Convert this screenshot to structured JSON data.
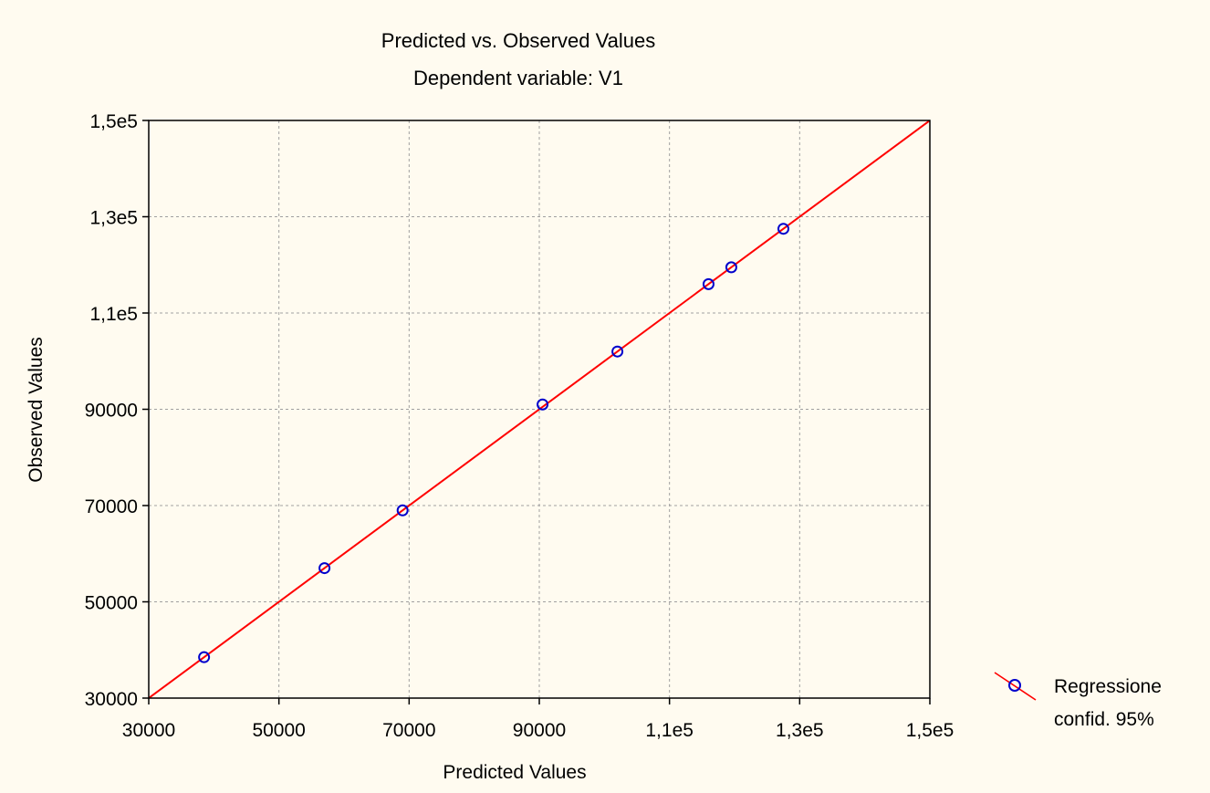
{
  "colors": {
    "background": "#FFFBF0",
    "grid": "#A0A0A0",
    "line": "#FF0000",
    "marker": "#0000CC"
  },
  "chart_data": {
    "type": "scatter",
    "title": "Predicted vs. Observed Values",
    "subtitle": "Dependent variable: V1",
    "xlabel": "Predicted Values",
    "ylabel": "Observed Values",
    "xlim": [
      30000,
      150000
    ],
    "ylim": [
      30000,
      150000
    ],
    "grid": true,
    "legend_position": "right",
    "x_ticks": [
      {
        "value": 30000,
        "label": "30000"
      },
      {
        "value": 50000,
        "label": "50000"
      },
      {
        "value": 70000,
        "label": "70000"
      },
      {
        "value": 90000,
        "label": "90000"
      },
      {
        "value": 110000,
        "label": "1,1e5"
      },
      {
        "value": 130000,
        "label": "1,3e5"
      },
      {
        "value": 150000,
        "label": "1,5e5"
      }
    ],
    "y_ticks": [
      {
        "value": 30000,
        "label": "30000"
      },
      {
        "value": 50000,
        "label": "50000"
      },
      {
        "value": 70000,
        "label": "70000"
      },
      {
        "value": 90000,
        "label": "90000"
      },
      {
        "value": 110000,
        "label": "1,1e5"
      },
      {
        "value": 130000,
        "label": "1,3e5"
      },
      {
        "value": 150000,
        "label": "1,5e5"
      }
    ],
    "legend": [
      "Regressione",
      "confid. 95%"
    ],
    "points": [
      {
        "x": 38500,
        "y": 38500
      },
      {
        "x": 57000,
        "y": 57000
      },
      {
        "x": 69000,
        "y": 69000
      },
      {
        "x": 90500,
        "y": 91000
      },
      {
        "x": 102000,
        "y": 102000
      },
      {
        "x": 116000,
        "y": 116000
      },
      {
        "x": 119500,
        "y": 119500
      },
      {
        "x": 127500,
        "y": 127500
      }
    ],
    "fit_line": {
      "x": [
        30000,
        150000
      ],
      "y": [
        30000,
        150000
      ]
    }
  }
}
